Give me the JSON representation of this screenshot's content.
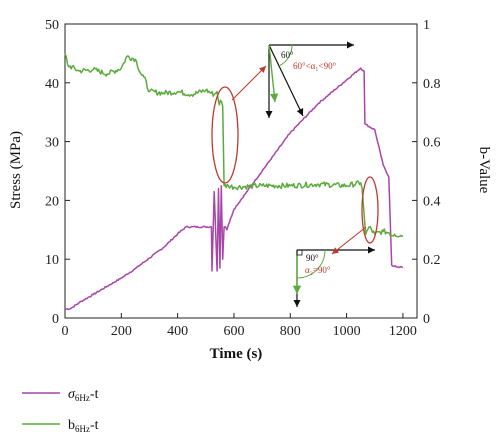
{
  "chart_data": {
    "type": "line",
    "xlabel": "Time (s)",
    "ylabel": "Stress (MPa)",
    "y2label": "b-Value",
    "xlim": [
      0,
      1250
    ],
    "ylim": [
      0,
      50
    ],
    "y2lim": [
      0,
      1
    ],
    "xticks": [
      0,
      200,
      400,
      600,
      800,
      1000,
      1200
    ],
    "yticks": [
      0,
      10,
      20,
      30,
      40,
      50
    ],
    "y2ticks": [
      0,
      0.2,
      0.4,
      0.6,
      0.8,
      1
    ],
    "grid": false,
    "legend_position": "bottom-left",
    "series": [
      {
        "name_main": "σ",
        "name_sub": "6Hz",
        "name_suffix": "-t",
        "axis": "left",
        "color": "#a845a8",
        "x": [
          0,
          20,
          50,
          100,
          150,
          200,
          250,
          300,
          350,
          400,
          430,
          520,
          522,
          530,
          540,
          545,
          550,
          555,
          560,
          565,
          570,
          575,
          580,
          600,
          700,
          800,
          900,
          1000,
          1050,
          1062,
          1065,
          1100,
          1130,
          1150,
          1160,
          1165,
          1200
        ],
        "y": [
          1.5,
          1.6,
          2.6,
          4.0,
          5.4,
          6.8,
          8.4,
          10.2,
          12.0,
          14.3,
          15.5,
          15.5,
          8.0,
          21.5,
          8.0,
          22.0,
          8.5,
          22.5,
          10.0,
          15.5,
          15.5,
          15.0,
          15.8,
          18.5,
          25.0,
          31.5,
          36.5,
          40.5,
          42.5,
          42.0,
          33.0,
          32.0,
          26.0,
          24.0,
          9.0,
          8.8,
          8.6
        ]
      },
      {
        "name_main": "b",
        "name_sub": "6Hz",
        "name_suffix": "-t",
        "axis": "right",
        "color": "#5aab3c",
        "x": [
          0,
          10,
          50,
          100,
          150,
          200,
          220,
          250,
          270,
          280,
          300,
          350,
          400,
          450,
          500,
          530,
          540,
          548,
          552,
          560,
          565,
          580,
          600,
          700,
          800,
          900,
          1000,
          1050,
          1055,
          1060,
          1068,
          1080,
          1100,
          1130,
          1150,
          1160,
          1170,
          1200
        ],
        "y": [
          0.9,
          0.86,
          0.84,
          0.845,
          0.83,
          0.85,
          0.89,
          0.88,
          0.83,
          0.82,
          0.77,
          0.765,
          0.77,
          0.76,
          0.775,
          0.76,
          0.77,
          0.725,
          0.74,
          0.72,
          0.45,
          0.45,
          0.445,
          0.45,
          0.45,
          0.455,
          0.45,
          0.46,
          0.44,
          0.38,
          0.285,
          0.31,
          0.285,
          0.295,
          0.29,
          0.28,
          0.285,
          0.28
        ]
      }
    ],
    "annotations": {
      "upper_angle": "60°",
      "upper_condition": "60°<α₁<90°",
      "lower_angle": "90°",
      "lower_condition": "α₂=90°"
    }
  },
  "colors": {
    "stress": "#a845a8",
    "bvalue": "#5aab3c",
    "highlight": "#c0392b"
  }
}
